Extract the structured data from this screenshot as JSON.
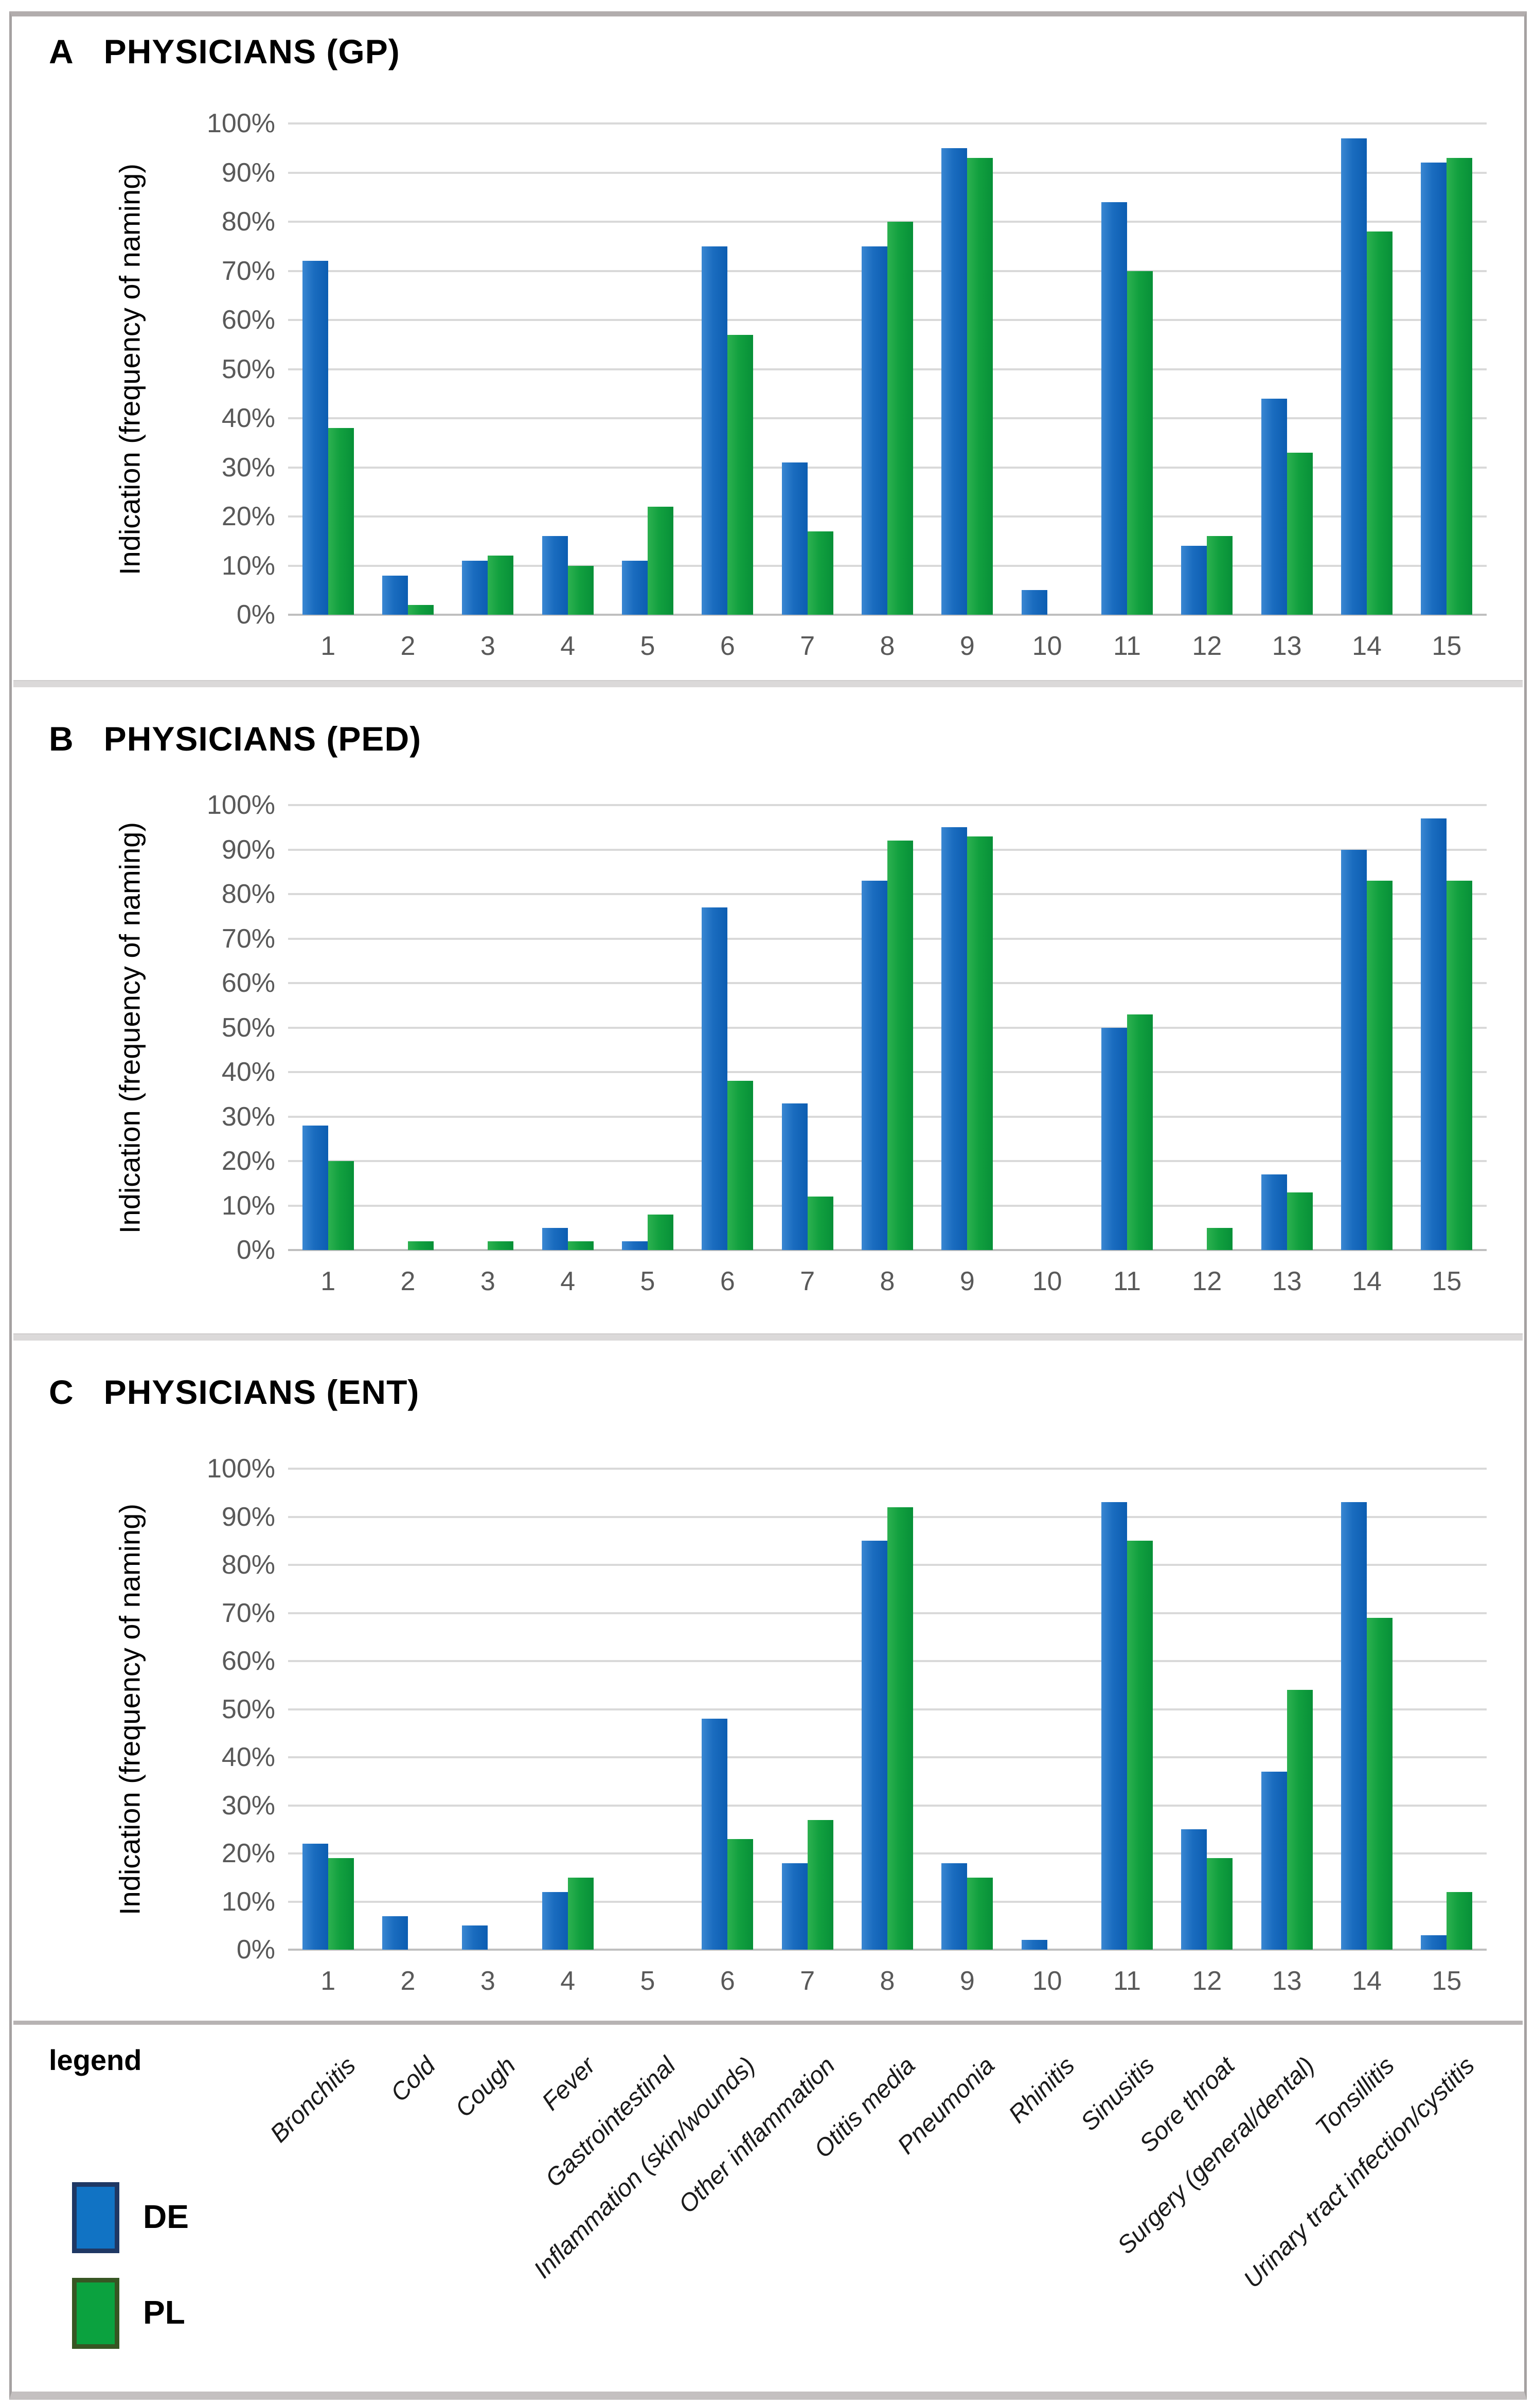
{
  "figure": {
    "legend_word": "legend",
    "y_axis_label": "Indication (frequency of naming)",
    "y_ticks": [
      "100%",
      "90%",
      "80%",
      "70%",
      "60%",
      "50%",
      "40%",
      "30%",
      "20%",
      "10%",
      "0%"
    ],
    "category_numbers": [
      "1",
      "2",
      "3",
      "4",
      "5",
      "6",
      "7",
      "8",
      "9",
      "10",
      "11",
      "12",
      "13",
      "14",
      "15"
    ],
    "category_names": [
      "Bronchitis",
      "Cold",
      "Cough",
      "Fever",
      "Gastrointestinal",
      "Inflammation (skin/wounds)",
      "Other inflammation",
      "Otitis media",
      "Pneumonia",
      "Rhinitis",
      "Sinusitis",
      "Sore throat",
      "Surgery (general/dental)",
      "Tonsillitis",
      "Urinary tract infection/cystitis"
    ],
    "series_legend": [
      {
        "name": "DE",
        "color": "#1173c4",
        "border_color": "#1f3864"
      },
      {
        "name": "PL",
        "color": "#0ba23f",
        "border_color": "#375623"
      }
    ]
  },
  "chart_data": [
    {
      "type": "bar",
      "panel_letter": "A",
      "title": "PHYSICIANS (GP)",
      "ylabel": "Indication (frequency of naming)",
      "ylim": [
        0,
        100
      ],
      "grid": true,
      "categories": [
        "1",
        "2",
        "3",
        "4",
        "5",
        "6",
        "7",
        "8",
        "9",
        "10",
        "11",
        "12",
        "13",
        "14",
        "15"
      ],
      "series": [
        {
          "name": "DE",
          "values": [
            72,
            8,
            11,
            16,
            11,
            75,
            31,
            75,
            95,
            5,
            84,
            14,
            44,
            97,
            92
          ]
        },
        {
          "name": "PL",
          "values": [
            38,
            2,
            12,
            10,
            22,
            57,
            17,
            80,
            93,
            0,
            70,
            16,
            33,
            78,
            93
          ]
        }
      ]
    },
    {
      "type": "bar",
      "panel_letter": "B",
      "title": "PHYSICIANS (PED)",
      "ylabel": "Indication (frequency of naming)",
      "ylim": [
        0,
        100
      ],
      "grid": true,
      "categories": [
        "1",
        "2",
        "3",
        "4",
        "5",
        "6",
        "7",
        "8",
        "9",
        "10",
        "11",
        "12",
        "13",
        "14",
        "15"
      ],
      "series": [
        {
          "name": "DE",
          "values": [
            28,
            0,
            0,
            5,
            2,
            77,
            33,
            83,
            95,
            0,
            50,
            0,
            17,
            90,
            97
          ]
        },
        {
          "name": "PL",
          "values": [
            20,
            2,
            2,
            2,
            8,
            38,
            12,
            92,
            93,
            0,
            53,
            5,
            13,
            83,
            83
          ]
        }
      ]
    },
    {
      "type": "bar",
      "panel_letter": "C",
      "title": "PHYSICIANS (ENT)",
      "ylabel": "Indication (frequency of naming)",
      "ylim": [
        0,
        100
      ],
      "grid": true,
      "categories": [
        "1",
        "2",
        "3",
        "4",
        "5",
        "6",
        "7",
        "8",
        "9",
        "10",
        "11",
        "12",
        "13",
        "14",
        "15"
      ],
      "series": [
        {
          "name": "DE",
          "values": [
            22,
            7,
            5,
            12,
            0,
            48,
            18,
            85,
            18,
            2,
            93,
            25,
            37,
            93,
            3
          ]
        },
        {
          "name": "PL",
          "values": [
            19,
            0,
            0,
            15,
            0,
            23,
            27,
            92,
            15,
            0,
            85,
            19,
            54,
            69,
            12
          ]
        }
      ]
    }
  ]
}
